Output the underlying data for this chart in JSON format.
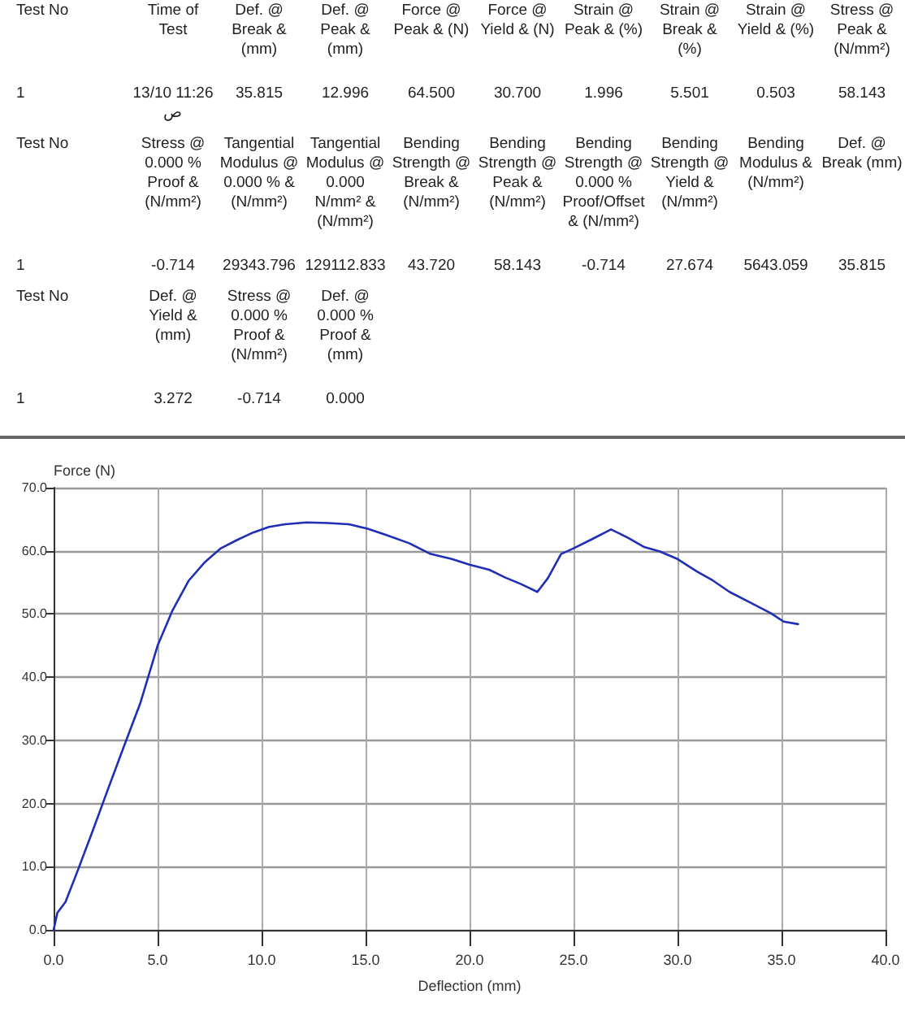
{
  "chart_data": [
    {
      "type": "other",
      "annotations": [
        "Test No",
        "Time of Test",
        "Def. @ Break & (mm)",
        "Def. @ Peak & (mm)",
        "Force @ Peak & (N)",
        "Force @ Yield & (N)",
        "Strain @ Peak & (%)",
        "Strain @ Break & (%)",
        "Strain @ Yield & (%)",
        "Stress @ Peak & (N/mm²)",
        "1",
        "13/10 11:26 ص",
        "35.815",
        "12.996",
        "64.500",
        "30.700",
        "1.996",
        "5.501",
        "0.503",
        "58.143"
      ]
    },
    {
      "type": "other",
      "annotations": [
        "Test No",
        "Stress @ 0.000 % Proof & (N/mm²)",
        "Tangential Modulus @ 0.000 % & (N/mm²)",
        "Tangential Modulus @ 0.000 N/mm² & (N/mm²)",
        "Bending Strength @ Break & (N/mm²)",
        "Bending Strength @ Peak & (N/mm²)",
        "Bending Strength @ 0.000 % Proof/Offset & (N/mm²)",
        "Bending Strength @ Yield & (N/mm²)",
        "Bending Modulus & (N/mm²)",
        "Def. @ Break (mm)",
        "1",
        "-0.714",
        "29343.796",
        "129112.833",
        "43.720",
        "58.143",
        "-0.714",
        "27.674",
        "5643.059",
        "35.815"
      ]
    },
    {
      "type": "other",
      "annotations": [
        "Test No",
        "Def. @ Yield & (mm)",
        "Stress @ 0.000 % Proof & (N/mm²)",
        "Def. @ 0.000 % Proof & (mm)",
        "1",
        "3.272",
        "-0.714",
        "0.000"
      ]
    },
    {
      "type": "line",
      "xlabel": "Deflection (mm)",
      "ylabel": "Force (N)",
      "grid": true,
      "marker": "none",
      "line_style": "solid",
      "xlim": [
        0,
        40
      ],
      "xticks": [
        {
          "value": 0,
          "label": "0.0"
        },
        {
          "value": 5,
          "label": "5.0"
        },
        {
          "value": 10,
          "label": "10.0"
        },
        {
          "value": 15,
          "label": "15.0"
        },
        {
          "value": 20,
          "label": "20.0"
        },
        {
          "value": 25,
          "label": "25.0"
        },
        {
          "value": 30,
          "label": "30.0"
        },
        {
          "value": 35,
          "label": "35.0"
        },
        {
          "value": 40,
          "label": "40.0"
        }
      ],
      "ylim": [
        0,
        70
      ],
      "yticks": [
        {
          "value": 0,
          "label": "0.0"
        },
        {
          "value": 10,
          "label": "10.0"
        },
        {
          "value": 20,
          "label": "20.0"
        },
        {
          "value": 30,
          "label": "30.0"
        },
        {
          "value": 40,
          "label": "40.0"
        },
        {
          "value": 50,
          "label": "50.0"
        },
        {
          "value": 60,
          "label": "60.0"
        },
        {
          "value": 70,
          "label": "70.0"
        }
      ],
      "series": [
        {
          "color": "#1f2fb5",
          "x": [
            0,
            0.18,
            0.57,
            1.08,
            1.86,
            2.63,
            3.4,
            4.18,
            5.0,
            5.72,
            6.5,
            7.27,
            8.04,
            8.81,
            9.59,
            10.36,
            11.13,
            12.16,
            13.2,
            14.2,
            15.1,
            16.0,
            17.1,
            18.13,
            19.15,
            20.0,
            20.95,
            21.7,
            22.5,
            23.26,
            23.77,
            24.4,
            25.0,
            25.8,
            26.8,
            27.6,
            28.4,
            29.15,
            30.0,
            30.95,
            31.7,
            32.5,
            33.5,
            34.5,
            35.1,
            35.8
          ],
          "values": [
            0,
            2.7,
            4.4,
            8.7,
            15.5,
            22.4,
            29.2,
            36.0,
            45.0,
            50.6,
            55.3,
            58.2,
            60.4,
            61.7,
            62.9,
            63.8,
            64.2,
            64.5,
            64.4,
            64.2,
            63.5,
            62.5,
            61.2,
            59.5,
            58.7,
            57.8,
            57.0,
            55.8,
            54.7,
            53.5,
            55.7,
            59.5,
            60.4,
            61.7,
            63.4,
            62.1,
            60.6,
            59.9,
            58.7,
            56.7,
            55.3,
            53.5,
            51.8,
            50.1,
            48.8,
            48.4
          ]
        }
      ]
    }
  ]
}
